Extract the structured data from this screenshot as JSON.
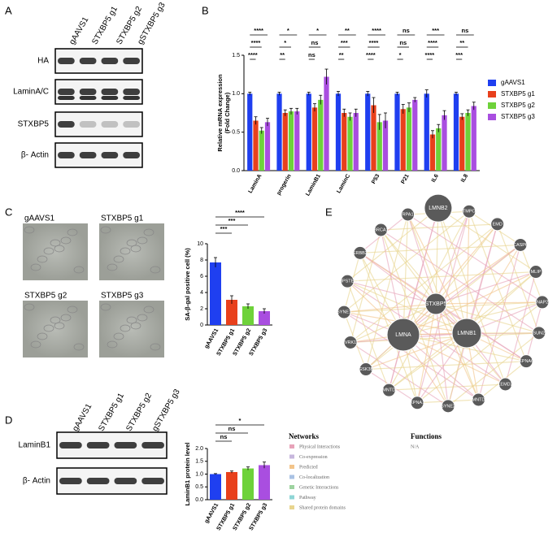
{
  "panels": [
    "A",
    "B",
    "C",
    "D",
    "E"
  ],
  "blot_a": {
    "columns": [
      "gAAVS1",
      "STXBP5 g1",
      "STXBP5 g2",
      "gSTXBP5 g3"
    ],
    "rows": [
      "HA",
      "LaminA/C",
      "STXBP5",
      "β- Actin"
    ]
  },
  "images_c": [
    "gAAVS1",
    "STXBP5 g1",
    "STXBP5 g2",
    "STXBP5 g3"
  ],
  "blot_d": {
    "columns": [
      "gAAVS1",
      "STXBP5 g1",
      "STXBP5 g2",
      "gSTXBP5 g3"
    ],
    "rows": [
      "LaminB1",
      "β- Actin"
    ]
  },
  "network": {
    "nodes": [
      "LMNB2",
      "TMPO",
      "EMD",
      "CASP6",
      "MLIP",
      "SNAP23",
      "SUN2",
      "KPNA6",
      "LEMD2",
      "LMNTD2",
      "SYNE2",
      "KPNA1",
      "LMNTD1",
      "GSK3B",
      "VRK1",
      "SYNE1",
      "ZMPSTE24",
      "ERBB2",
      "BRCA1",
      "RPA1",
      "STXBP5",
      "LMNA",
      "LMNB1"
    ],
    "networks_title": "Networks",
    "networks": [
      {
        "name": "Physical Interactions",
        "color": "#e7a3b9"
      },
      {
        "name": "Co-expression",
        "color": "#c7b7dd"
      },
      {
        "name": "Predicted",
        "color": "#f3c48a"
      },
      {
        "name": "Co-localization",
        "color": "#a9c2e4"
      },
      {
        "name": "Genetic Interactions",
        "color": "#9ed3a0"
      },
      {
        "name": "Pathway",
        "color": "#8fd5d5"
      },
      {
        "name": "Shared protein domains",
        "color": "#e8d58f"
      }
    ],
    "functions_title": "Functions",
    "functions": "N/A"
  },
  "chart_data": [
    {
      "type": "bar",
      "ylabel": [
        "Relative mRNA expression",
        "(Fold Change)"
      ],
      "categories": [
        "LaminA",
        "progerin",
        "LaminB1",
        "LaminC",
        "P53",
        "P21",
        "IL6",
        "IL8"
      ],
      "series": [
        {
          "name": "gAAVS1",
          "color": "#1f3ff0",
          "values": [
            1.0,
            1.0,
            1.0,
            1.0,
            1.0,
            1.0,
            1.0,
            1.0
          ],
          "errors": [
            0.02,
            0.02,
            0.02,
            0.03,
            0.03,
            0.02,
            0.05,
            0.02
          ]
        },
        {
          "name": "STXBP5 g1",
          "color": "#e8401c",
          "values": [
            0.65,
            0.75,
            0.82,
            0.75,
            0.85,
            0.8,
            0.47,
            0.7
          ],
          "errors": [
            0.05,
            0.04,
            0.05,
            0.05,
            0.1,
            0.06,
            0.05,
            0.04
          ]
        },
        {
          "name": "STXBP5 g2",
          "color": "#6ed23a",
          "values": [
            0.52,
            0.77,
            0.92,
            0.7,
            0.63,
            0.82,
            0.55,
            0.75
          ],
          "errors": [
            0.04,
            0.04,
            0.06,
            0.05,
            0.1,
            0.06,
            0.05,
            0.04
          ]
        },
        {
          "name": "STXBP5 g3",
          "color": "#a94ee0",
          "values": [
            0.63,
            0.77,
            1.22,
            0.75,
            0.65,
            0.92,
            0.72,
            0.84
          ],
          "errors": [
            0.05,
            0.04,
            0.1,
            0.05,
            0.1,
            0.03,
            0.06,
            0.05
          ]
        }
      ],
      "significance": [
        [
          "****",
          "****",
          "****"
        ],
        [
          "*",
          "*",
          "**"
        ],
        [
          "*",
          "ns",
          "ns"
        ],
        [
          "**",
          "***",
          "**"
        ],
        [
          "****",
          "****",
          "****"
        ],
        [
          "ns",
          "ns",
          "*"
        ],
        [
          "***",
          "****",
          "****"
        ],
        [
          "ns",
          "**",
          "***"
        ]
      ],
      "ylim": [
        0,
        1.5
      ],
      "yticks": [
        {
          "value": 0,
          "label": "0.0"
        },
        {
          "value": 0.5,
          "label": "0.5"
        },
        {
          "value": 1,
          "label": "1.0"
        },
        {
          "value": 1.5,
          "label": "1.5"
        }
      ]
    },
    {
      "type": "bar",
      "ylabel": [
        "SA-β-gal positive cell (%)"
      ],
      "categories": [
        "gAAVS1",
        "STXBP5 g1",
        "STXBP5 g2",
        "STXBP5 g3"
      ],
      "values": [
        7.7,
        3.1,
        2.3,
        1.7
      ],
      "errors": [
        0.6,
        0.5,
        0.3,
        0.3
      ],
      "colors": [
        "#1f3ff0",
        "#e8401c",
        "#6ed23a",
        "#a94ee0"
      ],
      "significance": [
        "***",
        "***",
        "****"
      ],
      "ylim": [
        0,
        10
      ],
      "yticks": [
        0,
        2,
        4,
        6,
        8,
        10
      ]
    },
    {
      "type": "bar",
      "ylabel": [
        "LaminB1 protein level"
      ],
      "categories": [
        "gAAVS1",
        "STXBP5 g1",
        "STXBP5 g2",
        "STXBP5 g3"
      ],
      "values": [
        1.0,
        1.08,
        1.22,
        1.35
      ],
      "errors": [
        0.02,
        0.04,
        0.06,
        0.12
      ],
      "colors": [
        "#1f3ff0",
        "#e8401c",
        "#6ed23a",
        "#a94ee0"
      ],
      "significance": [
        "ns",
        "ns",
        "*"
      ],
      "ylim": [
        0,
        2
      ],
      "yticks": [
        {
          "value": 0,
          "label": "0.0"
        },
        {
          "value": 0.5,
          "label": "0.5"
        },
        {
          "value": 1,
          "label": "1.0"
        },
        {
          "value": 1.5,
          "label": "1.5"
        },
        {
          "value": 2,
          "label": "2.0"
        }
      ]
    }
  ]
}
